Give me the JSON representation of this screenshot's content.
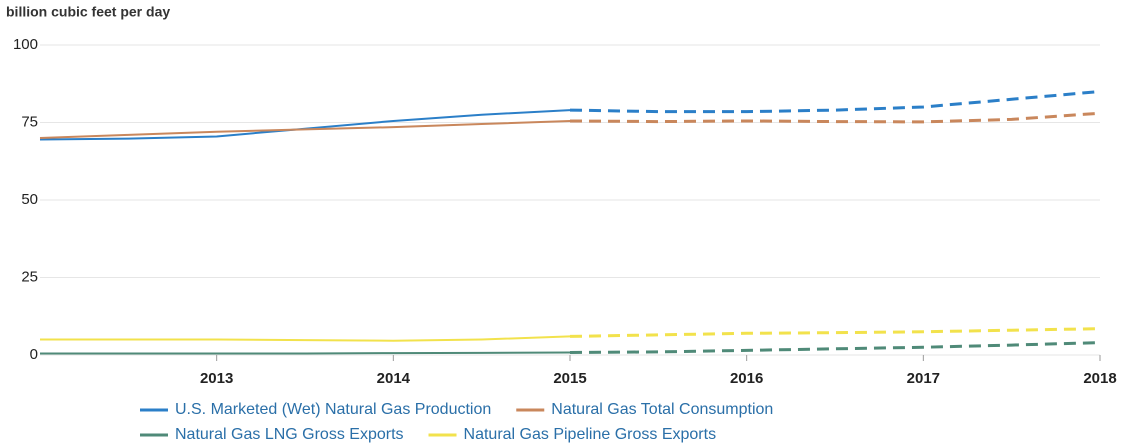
{
  "chart_data": {
    "type": "line",
    "y_axis_label": "billion cubic feet per day",
    "x": [
      2012,
      2012.5,
      2013,
      2013.5,
      2014,
      2014.5,
      2015,
      2015.5,
      2016,
      2016.5,
      2017,
      2017.5,
      2018
    ],
    "forecast_from": 2015,
    "series": [
      {
        "name": "U.S. Marketed (Wet) Natural Gas Production",
        "color": "#2b7fc8",
        "values": [
          69.5,
          69.8,
          70.5,
          73,
          75.5,
          77.5,
          79,
          78.5,
          78.5,
          79,
          80,
          82.5,
          85
        ]
      },
      {
        "name": "Natural Gas Total Consumption",
        "color": "#c9875c",
        "values": [
          70,
          71,
          72,
          72.8,
          73.5,
          74.5,
          75.5,
          75.3,
          75.5,
          75.3,
          75.2,
          76,
          78
        ]
      },
      {
        "name": "Natural Gas LNG Gross Exports",
        "color": "#4f8a78",
        "values": [
          0.5,
          0.5,
          0.5,
          0.5,
          0.6,
          0.7,
          0.8,
          1,
          1.5,
          2,
          2.5,
          3.2,
          4
        ]
      },
      {
        "name": "Natural Gas Pipeline Gross Exports",
        "color": "#f2e24c",
        "values": [
          5,
          5,
          5,
          4.8,
          4.6,
          5,
          6,
          6.5,
          7,
          7.2,
          7.5,
          8,
          8.5
        ]
      }
    ],
    "xlim": [
      2012,
      2018
    ],
    "xticks": [
      2013,
      2014,
      2015,
      2016,
      2017,
      2018
    ],
    "ylim": [
      0,
      100
    ],
    "yticks": [
      0,
      25,
      50,
      75,
      100
    ],
    "grid": true
  }
}
